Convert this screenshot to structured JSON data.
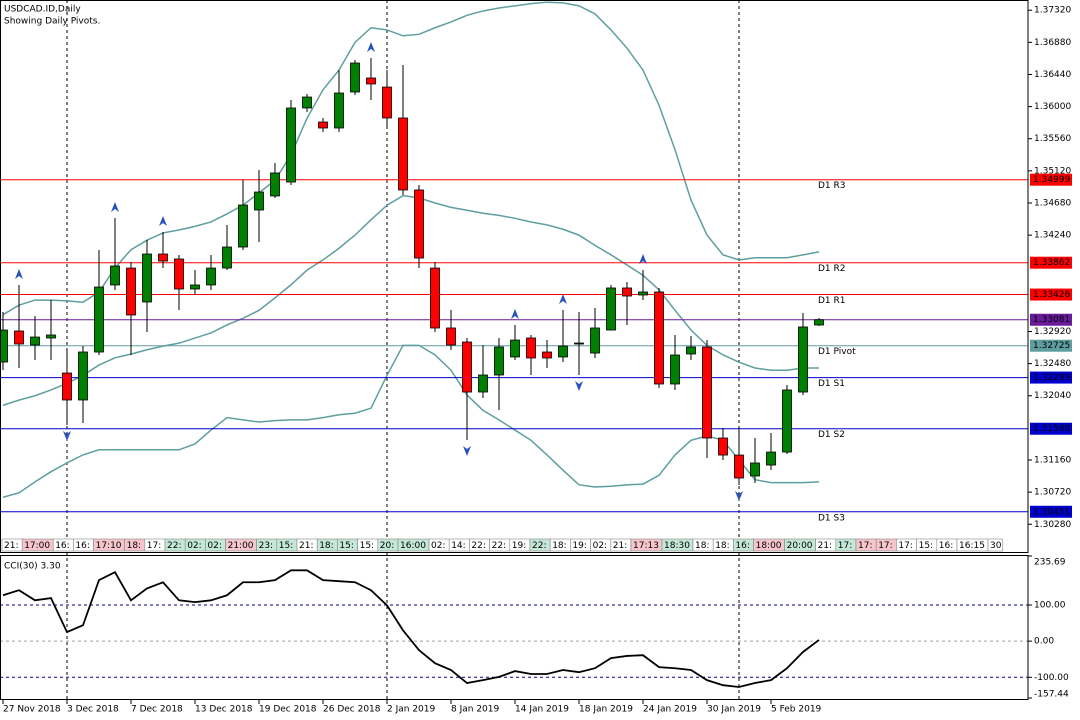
{
  "chart_data": [
    {
      "type": "candlestick",
      "title": "USDCAD.ID,Daily",
      "subtitle": "Showing Daily Pivots.",
      "categories": [
        "27 Nov 2018",
        null,
        null,
        null,
        "3 Dec 2018",
        null,
        null,
        null,
        "7 Dec 2018",
        null,
        null,
        null,
        "13 Dec 2018",
        null,
        null,
        null,
        "19 Dec 2018",
        null,
        null,
        null,
        "26 Dec 2018",
        null,
        null,
        null,
        "2 Jan 2019",
        null,
        null,
        null,
        "8 Jan 2019",
        null,
        null,
        null,
        "14 Jan 2019",
        null,
        null,
        null,
        "18 Jan 2019",
        null,
        null,
        null,
        "24 Jan 2019",
        null,
        null,
        null,
        "30 Jan 2019",
        null,
        null,
        null,
        "5 Feb 2019",
        null,
        null,
        null
      ],
      "open": [
        1.32502,
        1.32927,
        1.32735,
        1.32831,
        1.32351,
        1.31982,
        1.32639,
        1.33557,
        1.33789,
        1.33324,
        1.33981,
        1.33913,
        1.33502,
        1.33557,
        1.33789,
        1.34077,
        1.34584,
        1.34776,
        1.34967,
        1.35981,
        1.35789,
        1.35707,
        1.362,
        1.36392,
        1.36268,
        1.35844,
        1.34858,
        1.33789,
        1.32968,
        1.32776,
        1.32091,
        1.32324,
        1.32571,
        1.32831,
        1.32639,
        1.32571,
        1.32749,
        1.32625,
        1.3294,
        1.33516,
        1.3342,
        1.33461,
        1.32201,
        1.32612,
        1.32708,
        1.31461,
        1.31228,
        1.30941,
        1.31091,
        1.31269,
        1.32091,
        1.33009
      ],
      "high": [
        1.33187,
        1.33557,
        1.33132,
        1.33351,
        1.32666,
        1.32721,
        1.34036,
        1.34474,
        1.33872,
        1.34173,
        1.34283,
        1.33968,
        1.33762,
        1.33968,
        1.34378,
        1.34995,
        1.35132,
        1.35228,
        1.3609,
        1.36173,
        1.35844,
        1.36501,
        1.36638,
        1.36666,
        1.36501,
        1.3657,
        1.34926,
        1.33872,
        1.33214,
        1.32831,
        1.32735,
        1.32831,
        1.33009,
        1.32872,
        1.32803,
        1.33214,
        1.33187,
        1.33242,
        1.33557,
        1.33598,
        1.33762,
        1.33516,
        1.32872,
        1.32858,
        1.32803,
        1.31598,
        1.31598,
        1.31461,
        1.3153,
        1.32187,
        1.33173,
        1.33105
      ],
      "low": [
        1.32392,
        1.3242,
        1.32529,
        1.32529,
        1.31639,
        1.31667,
        1.32598,
        1.33488,
        1.32598,
        1.32913,
        1.33789,
        1.33214,
        1.3342,
        1.33488,
        1.33762,
        1.34036,
        1.34146,
        1.34748,
        1.34926,
        1.35926,
        1.35652,
        1.35652,
        1.36159,
        1.3609,
        1.35707,
        1.34789,
        1.33789,
        1.32913,
        1.32666,
        1.31434,
        1.32009,
        1.31845,
        1.32529,
        1.32324,
        1.3242,
        1.32502,
        1.32324,
        1.32557,
        1.3294,
        1.33009,
        1.33351,
        1.32146,
        1.32119,
        1.32529,
        1.31187,
        1.3116,
        1.30817,
        1.30845,
        1.31023,
        1.31242,
        1.3205,
        1.32995
      ],
      "close": [
        1.3294,
        1.32749,
        1.32844,
        1.32872,
        1.31982,
        1.32639,
        1.33529,
        1.33817,
        1.33146,
        1.33981,
        1.33885,
        1.33502,
        1.33557,
        1.33789,
        1.34077,
        1.34652,
        1.3483,
        1.35091,
        1.35981,
        1.36131,
        1.35707,
        1.36186,
        1.36597,
        1.3631,
        1.35844,
        1.34858,
        1.33926,
        1.32968,
        1.32735,
        1.32091,
        1.32324,
        1.32708,
        1.32803,
        1.32557,
        1.32557,
        1.32721,
        1.32762,
        1.32968,
        1.33516,
        1.33406,
        1.33461,
        1.32201,
        1.32598,
        1.32708,
        1.31461,
        1.31228,
        1.30913,
        1.31119,
        1.31269,
        1.32119,
        1.32982,
        1.33081
      ],
      "up_color": "#008000",
      "down_color": "#ff0000",
      "wick_color": "#000000",
      "bands": [
        {
          "color": "#5f9ea0",
          "values": [
            1.3315,
            1.3328,
            1.3335,
            1.3335,
            1.3334,
            1.3332,
            1.3346,
            1.3379,
            1.3404,
            1.3417,
            1.3427,
            1.3431,
            1.3436,
            1.3442,
            1.3453,
            1.3465,
            1.3482,
            1.3499,
            1.3534,
            1.3584,
            1.3623,
            1.365,
            1.3688,
            1.3708,
            1.3705,
            1.3697,
            1.3699,
            1.3708,
            1.3716,
            1.3725,
            1.3731,
            1.3735,
            1.3738,
            1.3741,
            1.3743,
            1.3742,
            1.3738,
            1.3727,
            1.3705,
            1.368,
            1.365,
            1.3602,
            1.3541,
            1.3472,
            1.3424,
            1.3397,
            1.339,
            1.3393,
            1.3393,
            1.3393,
            1.3397,
            1.3401
          ]
        },
        {
          "color": "#5f9ea0",
          "values": [
            1.3191,
            1.3198,
            1.3204,
            1.3212,
            1.3221,
            1.3232,
            1.3246,
            1.3256,
            1.3261,
            1.3267,
            1.3272,
            1.3276,
            1.3283,
            1.329,
            1.3301,
            1.331,
            1.3321,
            1.3338,
            1.3356,
            1.3376,
            1.339,
            1.3406,
            1.3424,
            1.3445,
            1.3465,
            1.3478,
            1.3475,
            1.3468,
            1.3462,
            1.3458,
            1.3454,
            1.3451,
            1.3447,
            1.3442,
            1.3438,
            1.3432,
            1.3424,
            1.341,
            1.3397,
            1.3383,
            1.3369,
            1.3349,
            1.3321,
            1.3294,
            1.3273,
            1.326,
            1.325,
            1.3242,
            1.3239,
            1.3239,
            1.3242,
            1.3242
          ]
        },
        {
          "color": "#5f9ea0",
          "values": [
            1.3065,
            1.3071,
            1.3086,
            1.31,
            1.3112,
            1.3123,
            1.313,
            1.313,
            1.313,
            1.313,
            1.313,
            1.313,
            1.3138,
            1.3157,
            1.3174,
            1.3171,
            1.3168,
            1.317,
            1.3171,
            1.3171,
            1.3174,
            1.3178,
            1.318,
            1.3187,
            1.3232,
            1.3273,
            1.3273,
            1.326,
            1.3239,
            1.3205,
            1.3184,
            1.3171,
            1.3157,
            1.3143,
            1.3123,
            1.3102,
            1.3082,
            1.3079,
            1.308,
            1.3082,
            1.3083,
            1.3095,
            1.3123,
            1.3143,
            1.3149,
            1.3143,
            1.3116,
            1.3089,
            1.3085,
            1.3085,
            1.3085,
            1.3086
          ]
        }
      ],
      "pivots": [
        {
          "label": "D1 R3",
          "value": 1.34999,
          "color": "#ff0000"
        },
        {
          "label": "D1 R2",
          "value": 1.33862,
          "color": "#ff0000"
        },
        {
          "label": "D1 R1",
          "value": 1.33426,
          "color": "#ff0000"
        },
        {
          "label": "D1 Pivot",
          "value": 1.32725,
          "color": "#5f9ea0"
        },
        {
          "label": "D1 S1",
          "value": 1.32289,
          "color": "#0000cd"
        },
        {
          "label": "D1 S2",
          "value": 1.31588,
          "color": "#0000cd"
        },
        {
          "label": "D1 S3",
          "value": 1.30451,
          "color": "#0000cd"
        }
      ],
      "current_price": {
        "value": 1.33081,
        "color": "#6a1b9a"
      },
      "fractals_up": [
        1,
        7,
        10,
        23,
        32,
        35,
        40
      ],
      "fractals_down": [
        4,
        29,
        36,
        46
      ],
      "fractal_color": "#2a52be",
      "separators": [
        4,
        24,
        46
      ],
      "time_tags": [
        {
          "text": "21:",
          "color": "#ffffff"
        },
        {
          "text": "17:00",
          "color": "#f6c6cc"
        },
        {
          "text": "16:",
          "color": "#ffffff"
        },
        {
          "text": "16:",
          "color": "#ffffff"
        },
        {
          "text": "17:10",
          "color": "#f6c6cc"
        },
        {
          "text": "18:",
          "color": "#f6c6cc"
        },
        {
          "text": "17:",
          "color": "#ffffff"
        },
        {
          "text": "22:",
          "color": "#c4e8d8"
        },
        {
          "text": "02:",
          "color": "#c4e8d8"
        },
        {
          "text": "02:",
          "color": "#c4e8d8"
        },
        {
          "text": "21:00",
          "color": "#f6c6cc"
        },
        {
          "text": "23:",
          "color": "#c4e8d8"
        },
        {
          "text": "15:",
          "color": "#c4e8d8"
        },
        {
          "text": "21:",
          "color": "#ffffff"
        },
        {
          "text": "18:",
          "color": "#c4e8d8"
        },
        {
          "text": "15:",
          "color": "#c4e8d8"
        },
        {
          "text": "15:",
          "color": "#ffffff"
        },
        {
          "text": "20:",
          "color": "#c4e8d8"
        },
        {
          "text": "16:00",
          "color": "#c4e8d8"
        },
        {
          "text": "02:",
          "color": "#ffffff"
        },
        {
          "text": "14:",
          "color": "#ffffff"
        },
        {
          "text": "22:",
          "color": "#ffffff"
        },
        {
          "text": "22:",
          "color": "#ffffff"
        },
        {
          "text": "19:",
          "color": "#ffffff"
        },
        {
          "text": "22:",
          "color": "#c4e8d8"
        },
        {
          "text": "18:",
          "color": "#ffffff"
        },
        {
          "text": "19:",
          "color": "#ffffff"
        },
        {
          "text": "02:",
          "color": "#ffffff"
        },
        {
          "text": "21:",
          "color": "#ffffff"
        },
        {
          "text": "17:13",
          "color": "#f6c6cc"
        },
        {
          "text": "18:30",
          "color": "#c4e8d8"
        },
        {
          "text": "18:",
          "color": "#ffffff"
        },
        {
          "text": "18:",
          "color": "#ffffff"
        },
        {
          "text": "16:",
          "color": "#c4e8d8"
        },
        {
          "text": "18:00",
          "color": "#f6c6cc"
        },
        {
          "text": "20:00",
          "color": "#c4e8d8"
        },
        {
          "text": "21:",
          "color": "#ffffff"
        },
        {
          "text": "17:",
          "color": "#c4e8d8"
        },
        {
          "text": "17:",
          "color": "#f6c6cc"
        },
        {
          "text": "17:",
          "color": "#f6c6cc"
        },
        {
          "text": "17:",
          "color": "#ffffff"
        },
        {
          "text": "15:",
          "color": "#ffffff"
        },
        {
          "text": "16:",
          "color": "#ffffff"
        },
        {
          "text": "16:15",
          "color": "#ffffff"
        },
        {
          "text": "30",
          "color": "#ffffff"
        }
      ],
      "ylim": [
        1.299,
        1.3746
      ],
      "yticks": [
        {
          "value": 1.3732,
          "label": "1.37320"
        },
        {
          "value": 1.3688,
          "label": "1.36880"
        },
        {
          "value": 1.3644,
          "label": "1.36440"
        },
        {
          "value": 1.36,
          "label": "1.36000"
        },
        {
          "value": 1.3556,
          "label": "1.35560"
        },
        {
          "value": 1.3512,
          "label": "1.35120"
        },
        {
          "value": 1.3468,
          "label": "1.34680"
        },
        {
          "value": 1.3424,
          "label": "1.34240"
        },
        {
          "value": 1.3292,
          "label": "1.32920"
        },
        {
          "value": 1.3248,
          "label": "1.32480"
        },
        {
          "value": 1.3204,
          "label": "1.32040"
        },
        {
          "value": 1.3116,
          "label": "1.31160"
        },
        {
          "value": 1.3072,
          "label": "1.30720"
        },
        {
          "value": 1.3028,
          "label": "1.30280"
        }
      ]
    },
    {
      "type": "line",
      "title": "CCI(30) 3.30",
      "color": "#000000",
      "values": [
        127,
        141,
        113,
        119,
        25,
        44,
        169,
        191,
        113,
        146,
        163,
        113,
        108,
        113,
        127,
        163,
        163,
        169,
        196,
        196,
        169,
        166,
        163,
        141,
        99,
        30,
        -25,
        -61,
        -80,
        -116,
        -108,
        -99,
        -83,
        -91,
        -91,
        -80,
        -86,
        -75,
        -47,
        -41,
        -39,
        -72,
        -75,
        -80,
        -108,
        -122,
        -127,
        -116,
        -108,
        -75,
        -30,
        3.3
      ],
      "levels": [
        {
          "value": 100,
          "color": "#00008b"
        },
        {
          "value": 0,
          "color": "#a0a0a0"
        },
        {
          "value": -100,
          "color": "#00008b"
        }
      ],
      "ylim": [
        -157.44,
        235.69
      ],
      "yticks": [
        {
          "value": 235.69,
          "label": "235.69"
        },
        {
          "value": 100,
          "label": "100.00"
        },
        {
          "value": 0,
          "label": "0.00"
        },
        {
          "value": -100,
          "label": "-100.00"
        },
        {
          "value": -157.44,
          "label": "-157.44"
        }
      ]
    }
  ]
}
